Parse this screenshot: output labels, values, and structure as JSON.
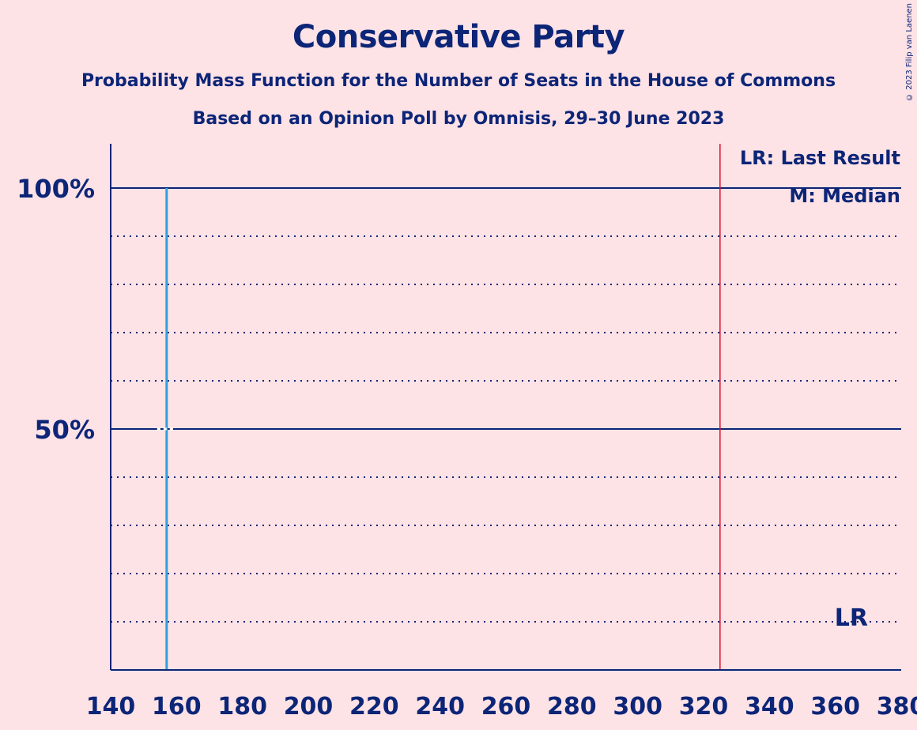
{
  "title": "Conservative Party",
  "subtitle_1": "Probability Mass Function for the Number of Seats in the House of Commons",
  "subtitle_2": "Based on an Opinion Poll by Omnisis, 29–30 June 2023",
  "copyright": "© 2023 Filip van Laenen",
  "colors": {
    "background": "#fde2e6",
    "text": "#0c2577",
    "median_line": "#2fa0d8",
    "last_result_line": "#d8102c"
  },
  "chart_data": {
    "type": "bar",
    "xlim": [
      140,
      380
    ],
    "ylim": [
      0,
      1.1
    ],
    "x_ticks": [
      140,
      160,
      180,
      200,
      220,
      240,
      260,
      280,
      300,
      320,
      340,
      360,
      380
    ],
    "y_ticks_labeled": [
      {
        "value": 0.5,
        "label": "50%"
      },
      {
        "value": 1.0,
        "label": "100%"
      }
    ],
    "y_gridlines_dotted": [
      0.1,
      0.2,
      0.3,
      0.4,
      0.6,
      0.7,
      0.8,
      0.9
    ],
    "bars": [
      {
        "x": 157,
        "value": 1.0
      }
    ],
    "median": 157,
    "last_result": 325,
    "legend": [
      "LR: Last Result",
      "M: Median"
    ],
    "last_result_label": "LR"
  }
}
